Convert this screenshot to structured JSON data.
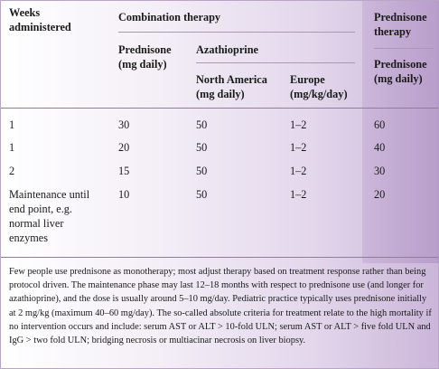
{
  "table": {
    "headers": {
      "weeks": [
        "Weeks",
        "administered"
      ],
      "combination": "Combination therapy",
      "prednisone_group": [
        "Prednisone",
        "therapy"
      ],
      "combo_prednisone": [
        "Prednisone",
        "(mg daily)"
      ],
      "azathioprine": "Azathioprine",
      "north_america": [
        "North America",
        "(mg daily)"
      ],
      "europe": [
        "Europe",
        "(mg/kg/day)"
      ],
      "mono_prednisone": [
        "Prednisone",
        "(mg daily)"
      ]
    },
    "rows": [
      {
        "weeks": [
          "1"
        ],
        "combo_prednisone": "30",
        "north_america": "50",
        "europe": "1–2",
        "mono_prednisone": "60"
      },
      {
        "weeks": [
          "1"
        ],
        "combo_prednisone": "20",
        "north_america": "50",
        "europe": "1–2",
        "mono_prednisone": "40"
      },
      {
        "weeks": [
          "2"
        ],
        "combo_prednisone": "15",
        "north_america": "50",
        "europe": "1–2",
        "mono_prednisone": "30"
      },
      {
        "weeks": [
          "Maintenance until",
          "end point, e.g.",
          "normal liver",
          "enzymes"
        ],
        "combo_prednisone": "10",
        "north_america": "50",
        "europe": "1–2",
        "mono_prednisone": "20"
      }
    ]
  },
  "footnote": "Few people use prednisone as monotherapy; most adjust therapy based on treatment response rather than being protocol driven. The maintenance phase may last 12–18 months with respect to prednisone use (and longer for azathioprine), and the dose is usually around 5–10 mg/day. Pediatric practice typically uses prednisone initially at 2 mg/kg (maximum 40–60 mg/day). The so-called absolute criteria for treatment relate to the high mortality if no intervention occurs and include: serum AST or ALT > 10-fold ULN; serum AST or ALT > five fold ULN and IgG > two fold ULN; bridging necrosis or multiacinar necrosis on liver biopsy."
}
